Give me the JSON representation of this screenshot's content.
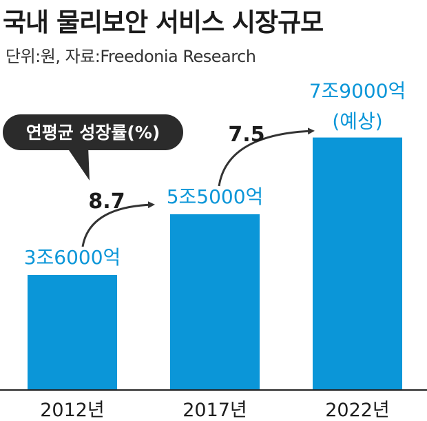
{
  "title": "국내 물리보안 서비스 시장규모",
  "source": "단위:원, 자료:Freedonia Research",
  "colors": {
    "bar": "#0b96d8",
    "value_text": "#0b96d8",
    "callout_bg": "#2b2b2b",
    "text": "#1c1c1c",
    "axis": "#222222"
  },
  "chart_data": {
    "type": "bar",
    "title": "국내 물리보안 서비스 시장규모",
    "xlabel": "",
    "ylabel": "",
    "categories": [
      "2012년",
      "2017년",
      "2022년"
    ],
    "values": [
      36000,
      55000,
      79000
    ],
    "value_labels": [
      "3조6000억",
      "5조5000억",
      "7조9000억"
    ],
    "value_sublabels": [
      "",
      "",
      "(예상)"
    ],
    "ylim": [
      0,
      94000
    ],
    "grid": false,
    "growth_label_title": "연평균 성장률(%)",
    "growth_rates": [
      {
        "from": "2012년",
        "to": "2017년",
        "label": "8.7"
      },
      {
        "from": "2017년",
        "to": "2022년",
        "label": "7.5"
      }
    ]
  }
}
